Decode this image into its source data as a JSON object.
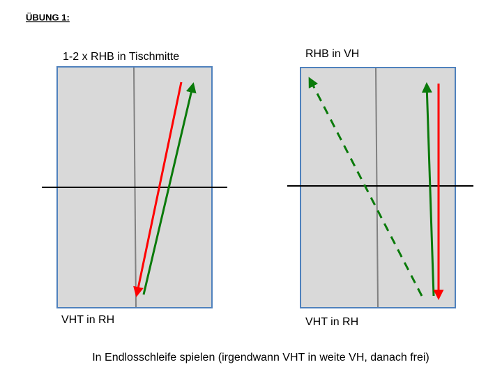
{
  "header": {
    "title": "ÜBUNG 1:"
  },
  "diagrams": [
    {
      "top_label": "1-2 x RHB in Tischmitte",
      "bottom_label": "VHT in RH"
    },
    {
      "top_label": "RHB in VH",
      "bottom_label": "VHT in RH"
    }
  ],
  "footer": {
    "text": "In Endlosschleife spielen (irgendwann VHT in weite VH, danach frei)"
  }
}
